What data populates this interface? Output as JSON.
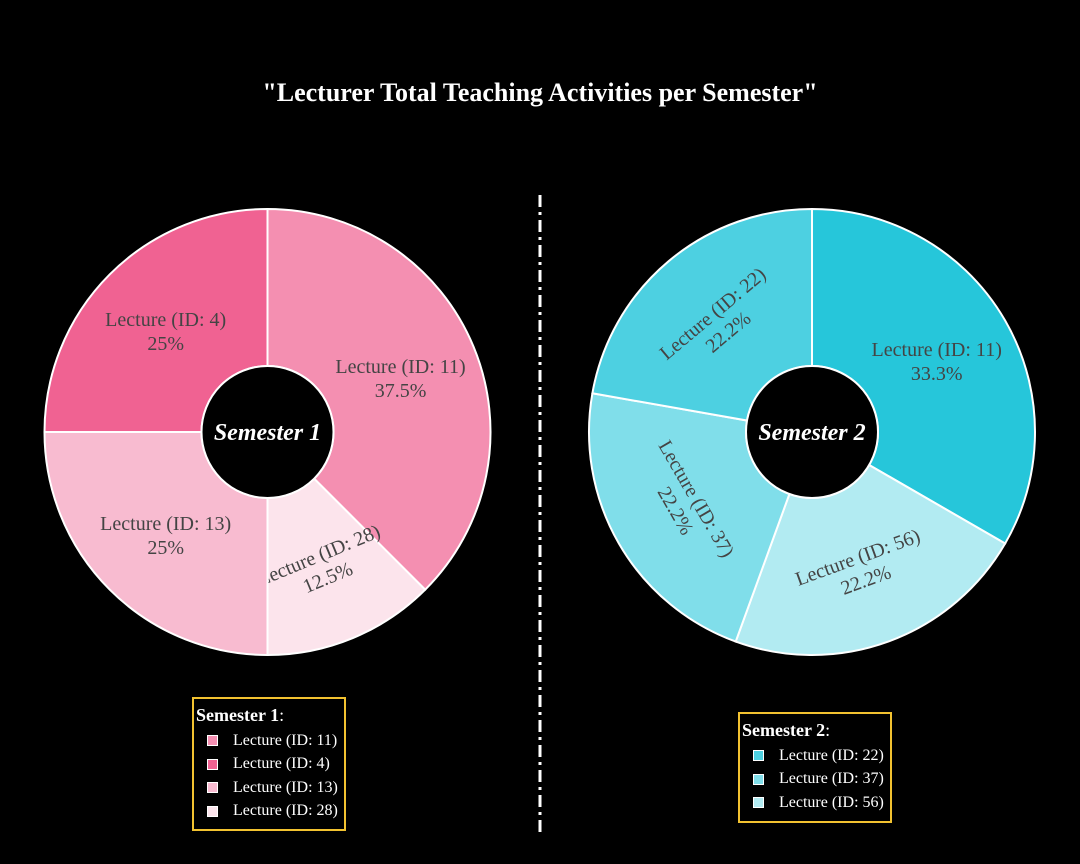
{
  "title": "\"Lecturer Total Teaching Activities per Semester\"",
  "chart_data": [
    {
      "type": "pie",
      "hole_label": "Semester 1",
      "legend_title": "Semester 1",
      "slices": [
        {
          "label": "Lecture (ID: 11)",
          "value": 37.5,
          "pct_text": "37.5%",
          "color": "#f48fb1"
        },
        {
          "label": "Lecture (ID: 28)",
          "value": 12.5,
          "pct_text": "12.5%",
          "color": "#fce4ec"
        },
        {
          "label": "Lecture (ID: 13)",
          "value": 25,
          "pct_text": "25%",
          "color": "#f8bbd0"
        },
        {
          "label": "Lecture (ID: 4)",
          "value": 25,
          "pct_text": "25%",
          "color": "#f06292"
        }
      ],
      "legend_order": [
        "Lecture (ID: 11)",
        "Lecture (ID: 4)",
        "Lecture (ID: 13)",
        "Lecture (ID: 28)"
      ]
    },
    {
      "type": "pie",
      "hole_label": "Semester 2",
      "legend_title": "Semester 2",
      "slices": [
        {
          "label": "Lecture (ID: 11)",
          "value": 33.3,
          "pct_text": "33.3%",
          "color": "#26c6da"
        },
        {
          "label": "Lecture (ID: 56)",
          "value": 22.2,
          "pct_text": "22.2%",
          "color": "#b2ebf2"
        },
        {
          "label": "Lecture (ID: 37)",
          "value": 22.2,
          "pct_text": "22.2%",
          "color": "#80deea"
        },
        {
          "label": "Lecture (ID: 22)",
          "value": 22.2,
          "pct_text": "22.2%",
          "color": "#4dd0e1"
        }
      ],
      "legend_order": [
        "Lecture (ID: 22)",
        "Lecture (ID: 37)",
        "Lecture (ID: 56)"
      ]
    }
  ],
  "colors": {
    "background": "#000000",
    "legend_border": "#f2c230",
    "divider": "#ffffff"
  }
}
